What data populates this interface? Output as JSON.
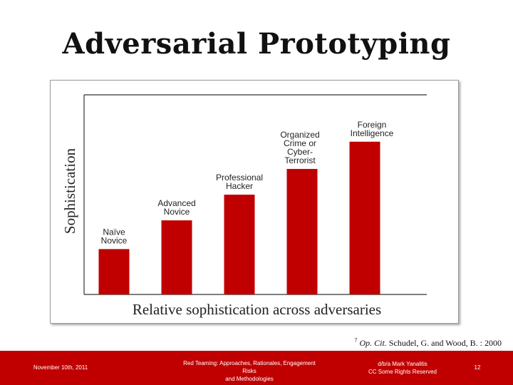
{
  "slide": {
    "title": "Adversarial Prototyping"
  },
  "chart_data": {
    "type": "bar",
    "categories": [
      "Naïve Novice",
      "Advanced Novice",
      "Professional Hacker",
      "Organized Crime or Cyber-Terrorist",
      "Foreign Intelligence"
    ],
    "category_lines": [
      [
        "Naïve",
        "Novice"
      ],
      [
        "Advanced",
        "Novice"
      ],
      [
        "Professional",
        "Hacker"
      ],
      [
        "Organized",
        "Crime or",
        "Cyber-",
        "Terrorist"
      ],
      [
        "Foreign",
        "Intelligence"
      ]
    ],
    "values": [
      1.5,
      2.45,
      3.3,
      4.15,
      5.05
    ],
    "ylim": [
      0,
      6.6
    ],
    "xlabel": "Relative sophistication across adversaries",
    "ylabel": "Sophistication",
    "bar_color": "#c00000",
    "grid": false,
    "legend": "none"
  },
  "footnote": {
    "marker": "7",
    "cite_italic": "Op. Cit.",
    "text": "Schudel, G. and Wood, B. : 2000"
  },
  "footer": {
    "date": "November 10th, 2011",
    "talk_line1": "Red Teaming: Approaches, Rationales, Engagement Risks",
    "talk_line2": "and Methodologies",
    "author_line1": "d/b/a Mark Yanalitis",
    "author_line2": "CC Some Rights Reserved",
    "page": "12",
    "color": "#c00000"
  }
}
